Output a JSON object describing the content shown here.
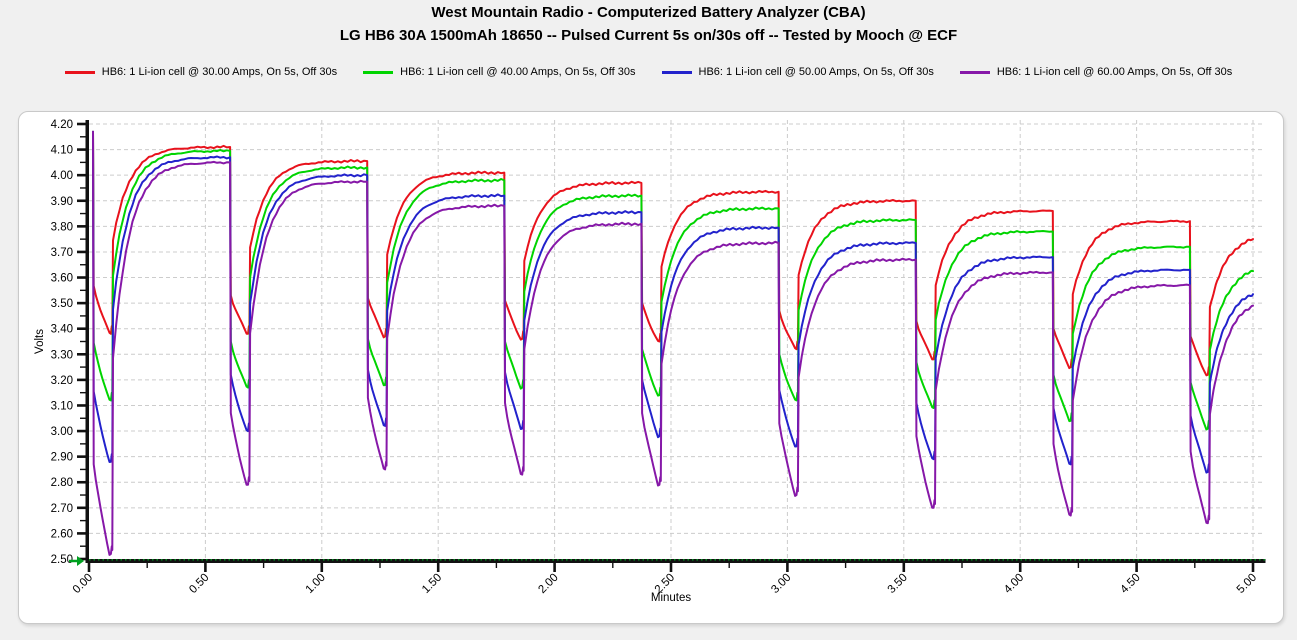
{
  "chart_data": {
    "type": "line",
    "title": "West Mountain Radio - Computerized Battery Analyzer (CBA)",
    "subtitle": "LG HB6 30A 1500mAh 18650 -- Pulsed Current 5s on/30s off -- Tested by Mooch @ ECF",
    "xlabel": "Minutes",
    "ylabel": "Volts",
    "xlim": [
      0,
      5
    ],
    "ylim": [
      2.5,
      4.2
    ],
    "x_tick_labels": [
      "0.00",
      "0.50",
      "1.00",
      "1.50",
      "2.00",
      "2.50",
      "3.00",
      "3.50",
      "4.00",
      "4.50",
      "5.00"
    ],
    "y_tick_labels": [
      "4.20",
      "4.10",
      "4.00",
      "3.90",
      "3.80",
      "3.70",
      "3.60",
      "3.50",
      "3.40",
      "3.30",
      "3.20",
      "3.10",
      "3.00",
      "2.90",
      "2.80",
      "2.70",
      "2.60",
      "2.50"
    ],
    "x_major_step": 0.5,
    "x_minor_step": 0.25,
    "y_major_step": 0.1,
    "y_minor_step": 0.05,
    "grid": "dashed light gray, horizontal every 0.10 V, vertical every 0.50 min",
    "legend_position": "top",
    "cutoff_marker": {
      "voltage": 2.5,
      "color": "#00a020"
    },
    "pulse_profile": {
      "start_voltage": 4.17,
      "first_pulse_start_min": 0.017,
      "period_min": 0.589,
      "on_min": 0.083
    },
    "series": [
      {
        "name": "HB6: 1 Li-ion cell @ 30.00 Amps, On 5s, Off 30s",
        "color": "#e8121c",
        "current_amps": 30,
        "recovery_plateaus_v": [
          4.11,
          4.055,
          4.01,
          3.97,
          3.935,
          3.9,
          3.86,
          3.82,
          3.75
        ],
        "pulse_min_v": [
          3.38,
          3.38,
          3.37,
          3.36,
          3.35,
          3.32,
          3.28,
          3.25,
          3.22
        ],
        "ir_sag_v": 0.15
      },
      {
        "name": "HB6: 1 Li-ion cell @ 40.00 Amps, On 5s, Off 30s",
        "color": "#00d400",
        "current_amps": 40,
        "recovery_plateaus_v": [
          4.095,
          4.03,
          3.98,
          3.92,
          3.87,
          3.825,
          3.78,
          3.72,
          3.625
        ],
        "pulse_min_v": [
          3.12,
          3.17,
          3.18,
          3.17,
          3.14,
          3.12,
          3.09,
          3.04,
          3.01
        ],
        "ir_sag_v": 0.18
      },
      {
        "name": "HB6: 1 Li-ion cell @ 50.00 Amps, On 5s, Off 30s",
        "color": "#2222cc",
        "current_amps": 50,
        "recovery_plateaus_v": [
          4.07,
          4.0,
          3.92,
          3.855,
          3.795,
          3.735,
          3.68,
          3.63,
          3.535
        ],
        "pulse_min_v": [
          2.88,
          3.0,
          3.02,
          3.01,
          2.98,
          2.94,
          2.89,
          2.87,
          2.84
        ],
        "ir_sag_v": 0.22
      },
      {
        "name": "HB6: 1 Li-ion cell @ 60.00 Amps, On 5s, Off 30s",
        "color": "#8618a8",
        "current_amps": 60,
        "recovery_plateaus_v": [
          4.05,
          3.975,
          3.88,
          3.81,
          3.735,
          3.67,
          3.62,
          3.57,
          3.49
        ],
        "pulse_min_v": [
          2.52,
          2.79,
          2.85,
          2.83,
          2.79,
          2.75,
          2.7,
          2.67,
          2.64
        ],
        "ir_sag_v": 0.28
      }
    ]
  }
}
